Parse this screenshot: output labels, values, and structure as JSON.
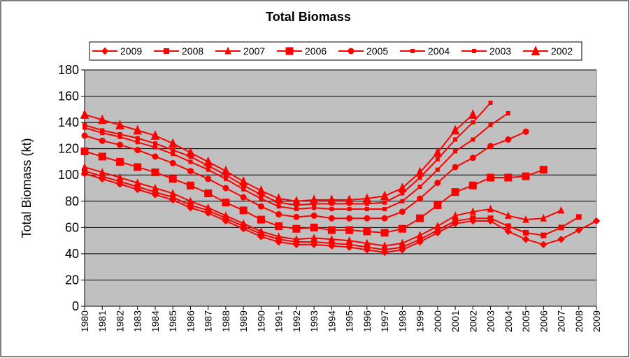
{
  "chart_data": {
    "type": "line",
    "title": "Total Biomass",
    "y_label": "Total Biomass (kt)",
    "categories": [
      "1980",
      "1981",
      "1982",
      "1983",
      "1984",
      "1985",
      "1986",
      "1987",
      "1988",
      "1989",
      "1990",
      "1991",
      "1992",
      "1993",
      "1994",
      "1995",
      "1996",
      "1997",
      "1998",
      "1999",
      "2000",
      "2001",
      "2002",
      "2003",
      "2004",
      "2005",
      "2006",
      "2007",
      "2008",
      "2009"
    ],
    "ylim": [
      0,
      180
    ],
    "yticks": [
      0,
      20,
      40,
      60,
      80,
      100,
      120,
      140,
      160,
      180
    ],
    "grid": true,
    "legend": "top",
    "series": [
      {
        "name": "2009",
        "color": "#ff0000",
        "marker": "diamond",
        "marker_size": 7,
        "values": [
          101,
          97,
          93,
          89,
          85,
          81,
          75,
          71,
          65,
          59,
          53,
          49,
          47,
          47,
          46,
          45,
          43,
          41,
          43,
          49,
          56,
          63,
          65,
          65,
          57,
          51,
          47,
          51,
          58,
          65
        ]
      },
      {
        "name": "2008",
        "color": "#ff0000",
        "marker": "square",
        "marker_size": 7,
        "values": [
          103,
          99,
          95,
          91,
          87,
          83,
          77,
          73,
          67,
          61,
          55,
          51,
          49,
          49,
          48,
          47,
          45,
          43,
          45,
          51,
          58,
          65,
          67,
          67,
          61,
          56,
          54,
          60,
          68,
          null
        ]
      },
      {
        "name": "2007",
        "color": "#ff0000",
        "marker": "triangle",
        "marker_size": 8,
        "values": [
          106,
          102,
          98,
          94,
          90,
          86,
          80,
          75,
          69,
          63,
          57,
          53,
          51,
          52,
          51,
          50,
          48,
          46,
          48,
          54,
          61,
          69,
          72,
          74,
          69,
          66,
          67,
          73,
          null,
          null
        ]
      },
      {
        "name": "2006",
        "color": "#ff0000",
        "marker": "square",
        "marker_size": 10,
        "values": [
          118,
          114,
          110,
          106,
          102,
          97,
          92,
          86,
          79,
          73,
          66,
          61,
          59,
          60,
          58,
          58,
          57,
          56,
          59,
          67,
          77,
          87,
          92,
          98,
          98,
          99,
          104,
          null,
          null,
          null
        ]
      },
      {
        "name": "2005",
        "color": "#ff0000",
        "marker": "circle",
        "marker_size": 8,
        "values": [
          130,
          126,
          123,
          119,
          114,
          109,
          103,
          97,
          90,
          83,
          76,
          70,
          68,
          69,
          67,
          67,
          67,
          67,
          72,
          82,
          94,
          106,
          113,
          122,
          127,
          133,
          null,
          null,
          null,
          null
        ]
      },
      {
        "name": "2004",
        "color": "#ff0000",
        "marker": "square",
        "marker_size": 5,
        "values": [
          136,
          132,
          129,
          125,
          121,
          116,
          110,
          104,
          97,
          89,
          82,
          76,
          74,
          75,
          74,
          74,
          74,
          74,
          80,
          91,
          104,
          118,
          127,
          138,
          147,
          null,
          null,
          null,
          null,
          null
        ]
      },
      {
        "name": "2003",
        "color": "#ff0000",
        "marker": "square",
        "marker_size": 5,
        "values": [
          138,
          134,
          131,
          128,
          124,
          119,
          114,
          107,
          100,
          92,
          85,
          79,
          77,
          78,
          78,
          78,
          78,
          79,
          86,
          98,
          112,
          127,
          140,
          155,
          null,
          null,
          null,
          null,
          null,
          null
        ]
      },
      {
        "name": "2002",
        "color": "#ff0000",
        "marker": "triangle",
        "marker_size": 11,
        "values": [
          146,
          142,
          138,
          134,
          130,
          124,
          117,
          110,
          103,
          95,
          88,
          82,
          80,
          81,
          81,
          81,
          82,
          84,
          90,
          102,
          117,
          134,
          146,
          null,
          null,
          null,
          null,
          null,
          null,
          null
        ]
      }
    ]
  }
}
